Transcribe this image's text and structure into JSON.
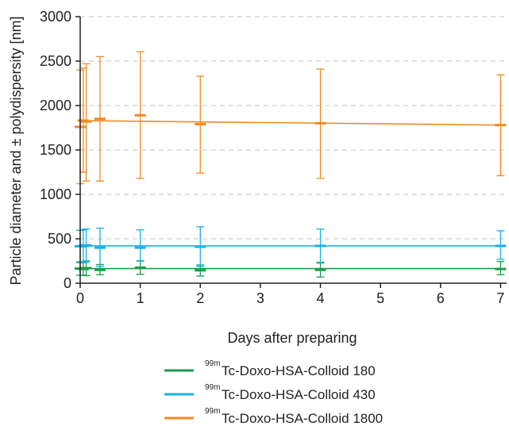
{
  "chart_data": {
    "type": "line",
    "xlabel": "Days after preparing",
    "ylabel": "Particle diameter and ± polydispersity [nm]",
    "xlim": [
      0,
      7.1
    ],
    "ylim": [
      0,
      3000
    ],
    "xticks": [
      "0",
      "1",
      "2",
      "3",
      "4",
      "5",
      "6",
      "7"
    ],
    "yticks": [
      "0",
      "500",
      "1000",
      "1500",
      "2000",
      "2500",
      "3000"
    ],
    "grid": "horizontal dashed",
    "legend_position": "bottom",
    "series": [
      {
        "name_sup": "99m",
        "name": "Tc-Doxo-HSA-Colloid 180",
        "color": "#1a9e4b",
        "trend": [
          [
            0,
            165
          ],
          [
            7,
            165
          ]
        ],
        "points": [
          {
            "x": 0,
            "y": 165,
            "err_low": 90,
            "err_high": 240
          },
          {
            "x": 0.05,
            "y": 160,
            "err_low": 90,
            "err_high": 235
          },
          {
            "x": 0.1,
            "y": 170,
            "err_low": 85,
            "err_high": 250
          },
          {
            "x": 0.33,
            "y": 150,
            "err_low": 95,
            "err_high": 210
          },
          {
            "x": 1,
            "y": 175,
            "err_low": 100,
            "err_high": 250
          },
          {
            "x": 2,
            "y": 145,
            "err_low": 80,
            "err_high": 205
          },
          {
            "x": 4,
            "y": 150,
            "err_low": 70,
            "err_high": 235
          },
          {
            "x": 7,
            "y": 160,
            "err_low": 95,
            "err_high": 245
          }
        ]
      },
      {
        "name_sup": "99m",
        "name": "Tc-Doxo-HSA-Colloid 430",
        "color": "#1ab0e8",
        "trend": [
          [
            0,
            420
          ],
          [
            7,
            420
          ]
        ],
        "points": [
          {
            "x": 0,
            "y": 415,
            "err_low": 230,
            "err_high": 595
          },
          {
            "x": 0.05,
            "y": 420,
            "err_low": 230,
            "err_high": 600
          },
          {
            "x": 0.1,
            "y": 425,
            "err_low": 240,
            "err_high": 610
          },
          {
            "x": 0.33,
            "y": 400,
            "err_low": 190,
            "err_high": 620
          },
          {
            "x": 1,
            "y": 400,
            "err_low": 255,
            "err_high": 600
          },
          {
            "x": 2,
            "y": 410,
            "err_low": 190,
            "err_high": 635
          },
          {
            "x": 4,
            "y": 420,
            "err_low": 225,
            "err_high": 610
          },
          {
            "x": 7,
            "y": 420,
            "err_low": 270,
            "err_high": 590
          }
        ]
      },
      {
        "name_sup": "99m",
        "name": "Tc-Doxo-HSA-Colloid 1800",
        "color": "#f08a24",
        "trend": [
          [
            0,
            1830
          ],
          [
            7,
            1780
          ]
        ],
        "points": [
          {
            "x": 0,
            "y": 1760,
            "err_low": 1120,
            "err_high": 2400
          },
          {
            "x": 0.05,
            "y": 1830,
            "err_low": 1250,
            "err_high": 2420
          },
          {
            "x": 0.1,
            "y": 1820,
            "err_low": 1150,
            "err_high": 2470
          },
          {
            "x": 0.33,
            "y": 1850,
            "err_low": 1150,
            "err_high": 2550
          },
          {
            "x": 1,
            "y": 1890,
            "err_low": 1180,
            "err_high": 2605
          },
          {
            "x": 2,
            "y": 1790,
            "err_low": 1240,
            "err_high": 2330
          },
          {
            "x": 4,
            "y": 1800,
            "err_low": 1180,
            "err_high": 2410
          },
          {
            "x": 7,
            "y": 1780,
            "err_low": 1210,
            "err_high": 2345
          }
        ]
      }
    ]
  }
}
